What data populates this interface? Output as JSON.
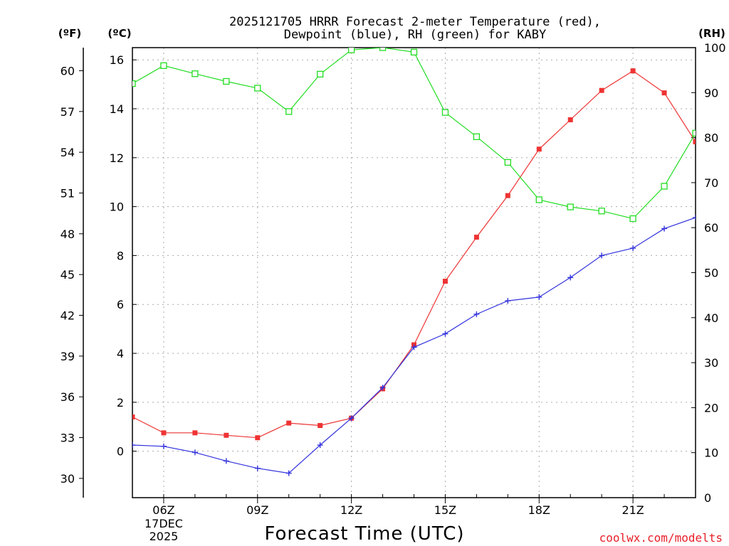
{
  "chart_data": {
    "type": "line",
    "title_line1": "2025121705 HRRR Forecast 2-meter Temperature (red),",
    "title_line2": "Dewpoint (blue), RH (green) for KABY",
    "xlabel": "Forecast Time (UTC)",
    "credit": "coolwx.com/modelts",
    "units": {
      "fahrenheit": "(ºF)",
      "celsius": "(ºC)",
      "rh": "(RH)"
    },
    "x_hours": [
      5,
      6,
      7,
      8,
      9,
      10,
      11,
      12,
      13,
      14,
      15,
      16,
      17,
      18,
      19,
      20,
      21,
      22,
      23
    ],
    "x_ticks": [
      {
        "hour": 6,
        "label": "06Z",
        "sub1": "17DEC",
        "sub2": "2025"
      },
      {
        "hour": 9,
        "label": "09Z"
      },
      {
        "hour": 12,
        "label": "12Z"
      },
      {
        "hour": 15,
        "label": "15Z"
      },
      {
        "hour": 18,
        "label": "18Z"
      },
      {
        "hour": 21,
        "label": "21Z"
      }
    ],
    "xlim": [
      5,
      23
    ],
    "celsius_axis": {
      "ylim": [
        -1.9,
        16.5
      ],
      "ticks": [
        0,
        2,
        4,
        6,
        8,
        10,
        12,
        14,
        16
      ]
    },
    "fahrenheit_axis": {
      "ticks": [
        30,
        33,
        36,
        39,
        42,
        45,
        48,
        51,
        54,
        57,
        60
      ]
    },
    "rh_axis": {
      "ylim": [
        0,
        100
      ],
      "ticks": [
        0,
        10,
        20,
        30,
        40,
        50,
        60,
        70,
        80,
        90,
        100
      ]
    },
    "series": [
      {
        "name": "Temperature",
        "color": "#ee3333",
        "marker": "filled-square",
        "axis": "celsius",
        "values": [
          1.4,
          0.75,
          0.75,
          0.65,
          0.55,
          1.15,
          1.05,
          1.35,
          2.55,
          4.35,
          6.95,
          8.75,
          10.45,
          12.35,
          13.55,
          14.75,
          15.55,
          14.65,
          12.65
        ]
      },
      {
        "name": "Dewpoint",
        "color": "#3333dd",
        "marker": "plus",
        "axis": "celsius",
        "values": [
          0.25,
          0.2,
          -0.05,
          -0.4,
          -0.7,
          -0.9,
          0.25,
          1.35,
          2.6,
          4.25,
          4.8,
          5.6,
          6.15,
          6.3,
          7.1,
          8.0,
          8.3,
          9.1,
          9.55
        ]
      },
      {
        "name": "RH",
        "color": "#22dd22",
        "marker": "open-square",
        "axis": "rh",
        "values": [
          92,
          96,
          94.2,
          92.5,
          91,
          85.8,
          94.1,
          99.5,
          100,
          99,
          85.6,
          80.2,
          74.5,
          66.2,
          64.6,
          63.7,
          62,
          69.2,
          81
        ]
      }
    ]
  }
}
